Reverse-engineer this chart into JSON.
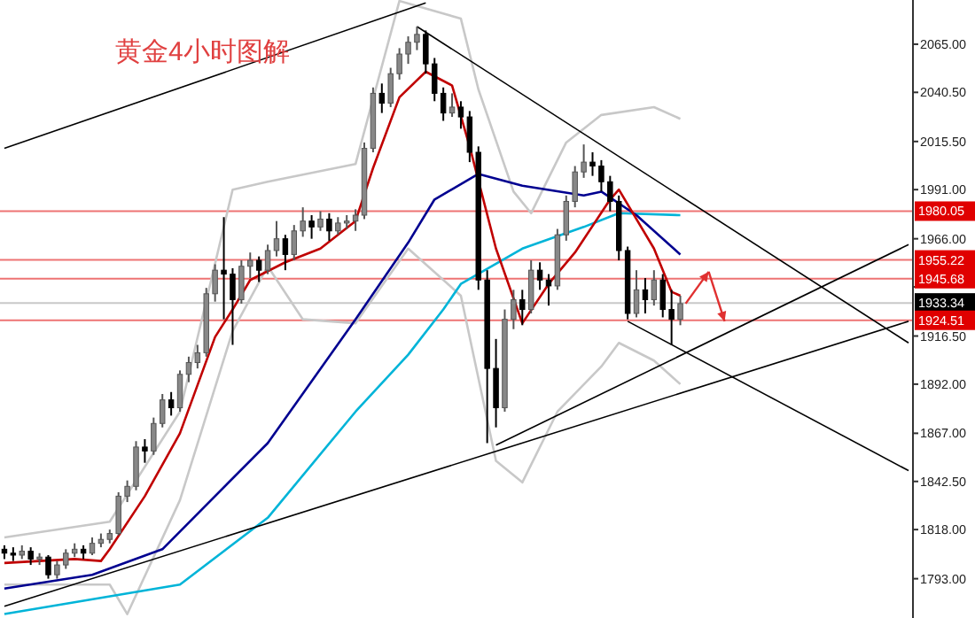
{
  "chart_data": {
    "type": "candlestick",
    "title": "黄金4小时图解",
    "categories": [
      null,
      null,
      null,
      null,
      null,
      null,
      null,
      null,
      null,
      null,
      null,
      null,
      null,
      null,
      null,
      null,
      null,
      null,
      null,
      null,
      null,
      null,
      null,
      null,
      null,
      null,
      null,
      null,
      null,
      null,
      null,
      null,
      null,
      null,
      null,
      null,
      null,
      null,
      null,
      null,
      null,
      null,
      null,
      null,
      null,
      null,
      null,
      null,
      null,
      null,
      null,
      null,
      null,
      null,
      null,
      null,
      null,
      null,
      null,
      null,
      null,
      null,
      null,
      null,
      null,
      null,
      null,
      null,
      null,
      null,
      null,
      null,
      null,
      null,
      null,
      null,
      null,
      null,
      null,
      null,
      null,
      null,
      null,
      null,
      null,
      null,
      null,
      null,
      null,
      null,
      null,
      null,
      null,
      null,
      null,
      null,
      null,
      null,
      null,
      null,
      null,
      null,
      null,
      null
    ],
    "ohlc": [
      [
        1808,
        1810,
        1803,
        1806
      ],
      [
        1806,
        1809,
        1802,
        1805
      ],
      [
        1805,
        1810,
        1803,
        1807
      ],
      [
        1807,
        1809,
        1800,
        1803
      ],
      [
        1803,
        1806,
        1800,
        1804
      ],
      [
        1804,
        1805,
        1793,
        1795
      ],
      [
        1795,
        1802,
        1793,
        1800
      ],
      [
        1800,
        1808,
        1798,
        1806
      ],
      [
        1806,
        1811,
        1804,
        1808
      ],
      [
        1808,
        1810,
        1803,
        1806
      ],
      [
        1806,
        1814,
        1805,
        1811
      ],
      [
        1811,
        1816,
        1809,
        1813
      ],
      [
        1813,
        1818,
        1811,
        1816
      ],
      [
        1816,
        1837,
        1815,
        1835
      ],
      [
        1835,
        1843,
        1832,
        1840
      ],
      [
        1840,
        1863,
        1838,
        1860
      ],
      [
        1860,
        1864,
        1852,
        1858
      ],
      [
        1858,
        1875,
        1856,
        1872
      ],
      [
        1872,
        1887,
        1870,
        1884
      ],
      [
        1884,
        1888,
        1876,
        1880
      ],
      [
        1880,
        1899,
        1878,
        1897
      ],
      [
        1897,
        1906,
        1893,
        1903
      ],
      [
        1903,
        1912,
        1900,
        1908
      ],
      [
        1908,
        1941,
        1906,
        1938
      ],
      [
        1938,
        1953,
        1934,
        1950
      ],
      [
        1950,
        1977,
        1925,
        1948
      ],
      [
        1948,
        1951,
        1912,
        1935
      ],
      [
        1935,
        1955,
        1933,
        1952
      ],
      [
        1952,
        1959,
        1946,
        1955
      ],
      [
        1955,
        1957,
        1944,
        1950
      ],
      [
        1950,
        1963,
        1948,
        1960
      ],
      [
        1960,
        1975,
        1957,
        1966
      ],
      [
        1966,
        1968,
        1950,
        1958
      ],
      [
        1958,
        1973,
        1955,
        1970
      ],
      [
        1970,
        1982,
        1967,
        1975
      ],
      [
        1975,
        1978,
        1966,
        1972
      ],
      [
        1972,
        1980,
        1970,
        1976
      ],
      [
        1976,
        1979,
        1965,
        1970
      ],
      [
        1970,
        1977,
        1968,
        1974
      ],
      [
        1974,
        1978,
        1971,
        1975
      ],
      [
        1975,
        1981,
        1970,
        1978
      ],
      [
        1978,
        2015,
        1976,
        2012
      ],
      [
        2012,
        2043,
        2010,
        2040
      ],
      [
        2040,
        2045,
        2030,
        2035
      ],
      [
        2035,
        2053,
        2033,
        2050
      ],
      [
        2050,
        2063,
        2047,
        2060
      ],
      [
        2060,
        2069,
        2055,
        2066
      ],
      [
        2066,
        2074,
        2062,
        2070
      ],
      [
        2070,
        2072,
        2050,
        2055
      ],
      [
        2055,
        2058,
        2036,
        2040
      ],
      [
        2040,
        2043,
        2026,
        2030
      ],
      [
        2030,
        2040,
        2028,
        2033
      ],
      [
        2033,
        2036,
        2022,
        2028
      ],
      [
        2028,
        2031,
        2005,
        2010
      ],
      [
        2010,
        2013,
        1940,
        1945
      ],
      [
        1945,
        1950,
        1862,
        1900
      ],
      [
        1900,
        1915,
        1870,
        1880
      ],
      [
        1880,
        1930,
        1878,
        1925
      ],
      [
        1925,
        1940,
        1920,
        1935
      ],
      [
        1935,
        1940,
        1922,
        1930
      ],
      [
        1930,
        1955,
        1928,
        1950
      ],
      [
        1950,
        1954,
        1940,
        1945
      ],
      [
        1945,
        1948,
        1932,
        1942
      ],
      [
        1942,
        1971,
        1940,
        1968
      ],
      [
        1968,
        1988,
        1965,
        1985
      ],
      [
        1985,
        2003,
        1982,
        2000
      ],
      [
        2000,
        2014,
        1997,
        2005
      ],
      [
        2005,
        2010,
        1998,
        2003
      ],
      [
        2003,
        2006,
        1990,
        1995
      ],
      [
        1995,
        1998,
        1980,
        1985
      ],
      [
        1985,
        1988,
        1955,
        1960
      ],
      [
        1960,
        1962,
        1925,
        1928
      ],
      [
        1928,
        1950,
        1926,
        1940
      ],
      [
        1940,
        1946,
        1928,
        1935
      ],
      [
        1935,
        1950,
        1932,
        1945
      ],
      [
        1945,
        1948,
        1926,
        1930
      ],
      [
        1930,
        1940,
        1912,
        1925
      ],
      [
        1925,
        1937,
        1922,
        1933
      ],
      null,
      null,
      null,
      null,
      null,
      null,
      null,
      null,
      null,
      null,
      null,
      null,
      null,
      null,
      null,
      null,
      null,
      null,
      null,
      null,
      null,
      null,
      null,
      null,
      null,
      null
    ],
    "series": [
      {
        "type": "line",
        "color": "#c8c8c8",
        "values": [
          1814,
          null,
          null,
          null,
          null,
          null,
          null,
          null,
          null,
          null,
          null,
          null,
          1822,
          null,
          null,
          null,
          null,
          null,
          null,
          null,
          1878,
          null,
          null,
          null,
          null,
          null,
          1991,
          null,
          null,
          null,
          1995,
          null,
          null,
          null,
          null,
          null,
          null,
          null,
          null,
          null,
          2004,
          null,
          null,
          null,
          null,
          2087,
          null,
          null,
          null,
          null,
          null,
          null,
          2078,
          null,
          2042,
          null,
          null,
          null,
          1990,
          null,
          1979,
          null,
          null,
          null,
          2015,
          null,
          null,
          null,
          2029,
          null,
          null,
          null,
          null,
          null,
          2033,
          null,
          null,
          2027,
          null,
          null,
          null,
          null,
          null,
          null,
          null,
          null,
          null,
          null,
          null,
          null,
          null,
          null,
          null,
          null,
          null,
          null,
          null,
          null,
          null,
          null,
          null,
          null,
          null,
          null
        ]
      },
      {
        "type": "line",
        "color": "#c8c8c8",
        "values": [
          1790,
          null,
          null,
          null,
          null,
          null,
          null,
          null,
          null,
          null,
          null,
          null,
          1790,
          null,
          1775,
          null,
          null,
          null,
          null,
          null,
          1833,
          null,
          null,
          null,
          null,
          null,
          1919,
          null,
          null,
          null,
          1952,
          null,
          null,
          null,
          1925,
          null,
          null,
          null,
          null,
          null,
          1923,
          null,
          null,
          null,
          null,
          null,
          1961,
          null,
          null,
          null,
          null,
          null,
          1937,
          null,
          null,
          null,
          1853,
          null,
          null,
          1842,
          null,
          null,
          null,
          1878,
          null,
          null,
          null,
          null,
          1901,
          null,
          1913,
          null,
          null,
          null,
          1904,
          null,
          null,
          1892,
          null,
          null,
          null,
          null,
          null,
          null,
          null,
          null,
          null,
          null,
          null,
          null,
          null,
          null,
          null,
          null,
          null,
          null,
          null,
          null,
          null,
          null,
          null,
          null,
          null,
          null
        ]
      },
      {
        "type": "line",
        "color": "#00b4d8",
        "values": [
          1775,
          null,
          null,
          null,
          null,
          null,
          null,
          null,
          null,
          null,
          null,
          null,
          null,
          null,
          null,
          null,
          null,
          null,
          null,
          null,
          1790,
          null,
          null,
          null,
          null,
          null,
          null,
          null,
          null,
          null,
          1824,
          null,
          null,
          null,
          null,
          null,
          null,
          null,
          null,
          null,
          1878,
          null,
          null,
          null,
          null,
          null,
          1907,
          null,
          null,
          null,
          1930,
          null,
          1943,
          null,
          null,
          null,
          null,
          null,
          null,
          1961,
          null,
          null,
          null,
          null,
          null,
          null,
          1972,
          null,
          null,
          null,
          1979,
          null,
          null,
          null,
          null,
          null,
          null,
          1978,
          null,
          null,
          null,
          null,
          null,
          null,
          null,
          null,
          null,
          null,
          null,
          null,
          null,
          null,
          null,
          null,
          null,
          null,
          null,
          null,
          null,
          null,
          null,
          null,
          null,
          null
        ]
      },
      {
        "type": "line",
        "color": "#000090",
        "values": [
          1788,
          null,
          null,
          null,
          null,
          null,
          null,
          null,
          null,
          null,
          1795,
          null,
          null,
          null,
          null,
          null,
          null,
          null,
          1808,
          null,
          null,
          null,
          null,
          null,
          null,
          null,
          null,
          null,
          null,
          null,
          1862,
          null,
          null,
          null,
          null,
          null,
          null,
          null,
          null,
          null,
          1925,
          null,
          null,
          null,
          null,
          null,
          1964,
          null,
          null,
          1986,
          null,
          null,
          null,
          null,
          1999,
          null,
          null,
          null,
          null,
          1993,
          null,
          null,
          null,
          null,
          null,
          null,
          1988,
          null,
          1990,
          null,
          null,
          null,
          1978,
          null,
          null,
          null,
          null,
          1958,
          null,
          null,
          null,
          null,
          null,
          null,
          null,
          null,
          null,
          null,
          null,
          null,
          null,
          null,
          null,
          null,
          null,
          null,
          null,
          null,
          null,
          null,
          null,
          null,
          null,
          null
        ]
      },
      {
        "type": "line",
        "color": "#c00000",
        "values": [
          1801,
          null,
          null,
          null,
          null,
          null,
          null,
          null,
          1803,
          null,
          null,
          1802,
          1808,
          null,
          null,
          null,
          1835,
          null,
          null,
          null,
          1867,
          null,
          null,
          null,
          1916,
          null,
          1930,
          null,
          1945,
          null,
          null,
          null,
          1954,
          null,
          null,
          null,
          1961,
          null,
          null,
          null,
          1975,
          null,
          2002,
          null,
          null,
          2038,
          null,
          null,
          2051,
          null,
          null,
          2044,
          null,
          2013,
          null,
          null,
          1961,
          null,
          null,
          1923,
          null,
          null,
          1943,
          null,
          null,
          1959,
          null,
          null,
          null,
          1986,
          1991,
          null,
          null,
          null,
          1961,
          null,
          1939,
          1937,
          null,
          null,
          null,
          null,
          null,
          null,
          null,
          null,
          null,
          null,
          null,
          null,
          null,
          null,
          null,
          null,
          null,
          null,
          null,
          null,
          null,
          null,
          null,
          null,
          null,
          null
        ]
      },
      {
        "type": "line",
        "color": "#000000",
        "values": [
          2012,
          null,
          null,
          null,
          null,
          null,
          null,
          null,
          null,
          null,
          null,
          null,
          null,
          null,
          null,
          null,
          null,
          null,
          null,
          null,
          null,
          null,
          null,
          null,
          null,
          null,
          null,
          null,
          null,
          null,
          null,
          null,
          null,
          null,
          null,
          null,
          null,
          null,
          null,
          null,
          null,
          null,
          null,
          null,
          null,
          null,
          null,
          null,
          2086,
          null,
          null,
          null,
          null,
          null,
          null,
          null,
          null,
          null,
          null,
          null,
          null,
          null,
          null,
          null,
          null,
          null,
          null,
          null,
          null,
          null,
          null,
          null,
          null,
          null,
          null,
          null,
          null,
          null,
          null,
          null,
          null,
          null,
          null,
          null,
          null,
          null,
          null,
          null,
          null,
          null,
          null,
          null,
          null,
          null,
          null,
          null,
          null,
          null,
          null,
          null,
          null,
          null,
          null,
          null
        ]
      },
      {
        "type": "line",
        "color": "#000000",
        "values": [
          null,
          null,
          null,
          null,
          null,
          null,
          null,
          null,
          null,
          null,
          null,
          null,
          null,
          null,
          null,
          null,
          null,
          null,
          null,
          null,
          null,
          null,
          null,
          null,
          null,
          null,
          null,
          null,
          null,
          null,
          null,
          null,
          null,
          null,
          null,
          null,
          null,
          null,
          null,
          null,
          null,
          null,
          null,
          null,
          null,
          null,
          null,
          2074,
          null,
          null,
          null,
          null,
          null,
          null,
          null,
          null,
          null,
          null,
          null,
          null,
          null,
          null,
          null,
          null,
          null,
          null,
          null,
          null,
          null,
          null,
          null,
          null,
          null,
          null,
          null,
          null,
          null,
          null,
          null,
          null,
          null,
          null,
          null,
          null,
          null,
          null,
          null,
          null,
          null,
          null,
          null,
          null,
          null,
          null,
          null,
          null,
          null,
          null,
          null,
          null,
          null,
          null,
          null,
          1913
        ]
      },
      {
        "type": "line",
        "color": "#000000",
        "values": [
          1779,
          null,
          null,
          null,
          null,
          null,
          null,
          null,
          null,
          null,
          null,
          null,
          null,
          null,
          null,
          null,
          null,
          null,
          null,
          null,
          null,
          null,
          null,
          null,
          null,
          null,
          null,
          null,
          null,
          null,
          null,
          null,
          null,
          null,
          null,
          null,
          null,
          null,
          null,
          null,
          null,
          null,
          null,
          null,
          null,
          null,
          null,
          null,
          null,
          null,
          null,
          null,
          null,
          null,
          null,
          null,
          null,
          null,
          null,
          null,
          null,
          null,
          null,
          null,
          null,
          null,
          null,
          null,
          null,
          null,
          null,
          null,
          null,
          null,
          null,
          null,
          null,
          null,
          null,
          null,
          null,
          null,
          null,
          null,
          null,
          null,
          null,
          null,
          null,
          null,
          null,
          null,
          null,
          null,
          null,
          null,
          null,
          null,
          null,
          null,
          null,
          null,
          null,
          1924
        ]
      },
      {
        "type": "line",
        "color": "#000000",
        "values": [
          null,
          null,
          null,
          null,
          null,
          null,
          null,
          null,
          null,
          null,
          null,
          null,
          null,
          null,
          null,
          null,
          null,
          null,
          null,
          null,
          null,
          null,
          null,
          null,
          null,
          null,
          null,
          null,
          null,
          null,
          null,
          null,
          null,
          null,
          null,
          null,
          null,
          null,
          null,
          null,
          null,
          null,
          null,
          null,
          null,
          null,
          null,
          null,
          null,
          null,
          null,
          null,
          null,
          null,
          null,
          null,
          1861,
          null,
          null,
          null,
          null,
          null,
          null,
          null,
          null,
          null,
          null,
          null,
          null,
          null,
          null,
          null,
          null,
          null,
          null,
          null,
          null,
          null,
          null,
          null,
          null,
          null,
          null,
          null,
          null,
          null,
          null,
          null,
          null,
          null,
          null,
          null,
          null,
          null,
          null,
          null,
          null,
          null,
          null,
          null,
          null,
          null,
          null,
          1963
        ]
      },
      {
        "type": "line",
        "color": "#000000",
        "values": [
          null,
          null,
          null,
          null,
          null,
          null,
          null,
          null,
          null,
          null,
          null,
          null,
          null,
          null,
          null,
          null,
          null,
          null,
          null,
          null,
          null,
          null,
          null,
          null,
          null,
          null,
          null,
          null,
          null,
          null,
          null,
          null,
          null,
          null,
          null,
          null,
          null,
          null,
          null,
          null,
          null,
          null,
          null,
          null,
          null,
          null,
          null,
          null,
          null,
          null,
          null,
          null,
          null,
          null,
          null,
          null,
          null,
          null,
          null,
          null,
          null,
          null,
          null,
          null,
          null,
          null,
          null,
          null,
          null,
          null,
          null,
          1924,
          null,
          null,
          null,
          null,
          null,
          null,
          null,
          null,
          null,
          null,
          null,
          null,
          null,
          null,
          null,
          null,
          null,
          null,
          null,
          null,
          null,
          null,
          null,
          null,
          null,
          null,
          null,
          null,
          null,
          null,
          null,
          1848
        ]
      }
    ],
    "ref_lines": [
      {
        "axis": "y",
        "value": 1980.05,
        "label": "1980.05",
        "color": "#e00000"
      },
      {
        "axis": "y",
        "value": 1955.22,
        "label": "1955.22",
        "color": "#e00000"
      },
      {
        "axis": "y",
        "value": 1945.68,
        "label": "1945.68",
        "color": "#e00000"
      },
      {
        "axis": "y",
        "value": 1933.34,
        "label": "1933.34",
        "color": "#c8c8c8"
      },
      {
        "axis": "y",
        "value": 1924.51,
        "label": "1924.51",
        "color": "#e00000"
      }
    ],
    "ylim": [
      1773,
      2087.5
    ],
    "yticks": [
      {
        "value": 2065,
        "label": "2065.00"
      },
      {
        "value": 2040.5,
        "label": "2040.50"
      },
      {
        "value": 2015.5,
        "label": "2015.50"
      },
      {
        "value": 1991,
        "label": "1991.00"
      },
      {
        "value": 1966,
        "label": "1966.00"
      },
      {
        "value": 1941.5,
        "label": null
      },
      {
        "value": 1916.5,
        "label": "1916.50"
      },
      {
        "value": 1892,
        "label": "1892.00"
      },
      {
        "value": 1867,
        "label": "1867.00"
      },
      {
        "value": 1842.5,
        "label": "1842.50"
      },
      {
        "value": 1818,
        "label": "1818.00"
      },
      {
        "value": 1793,
        "label": "1793.00"
      }
    ],
    "tick_labels": "y"
  }
}
